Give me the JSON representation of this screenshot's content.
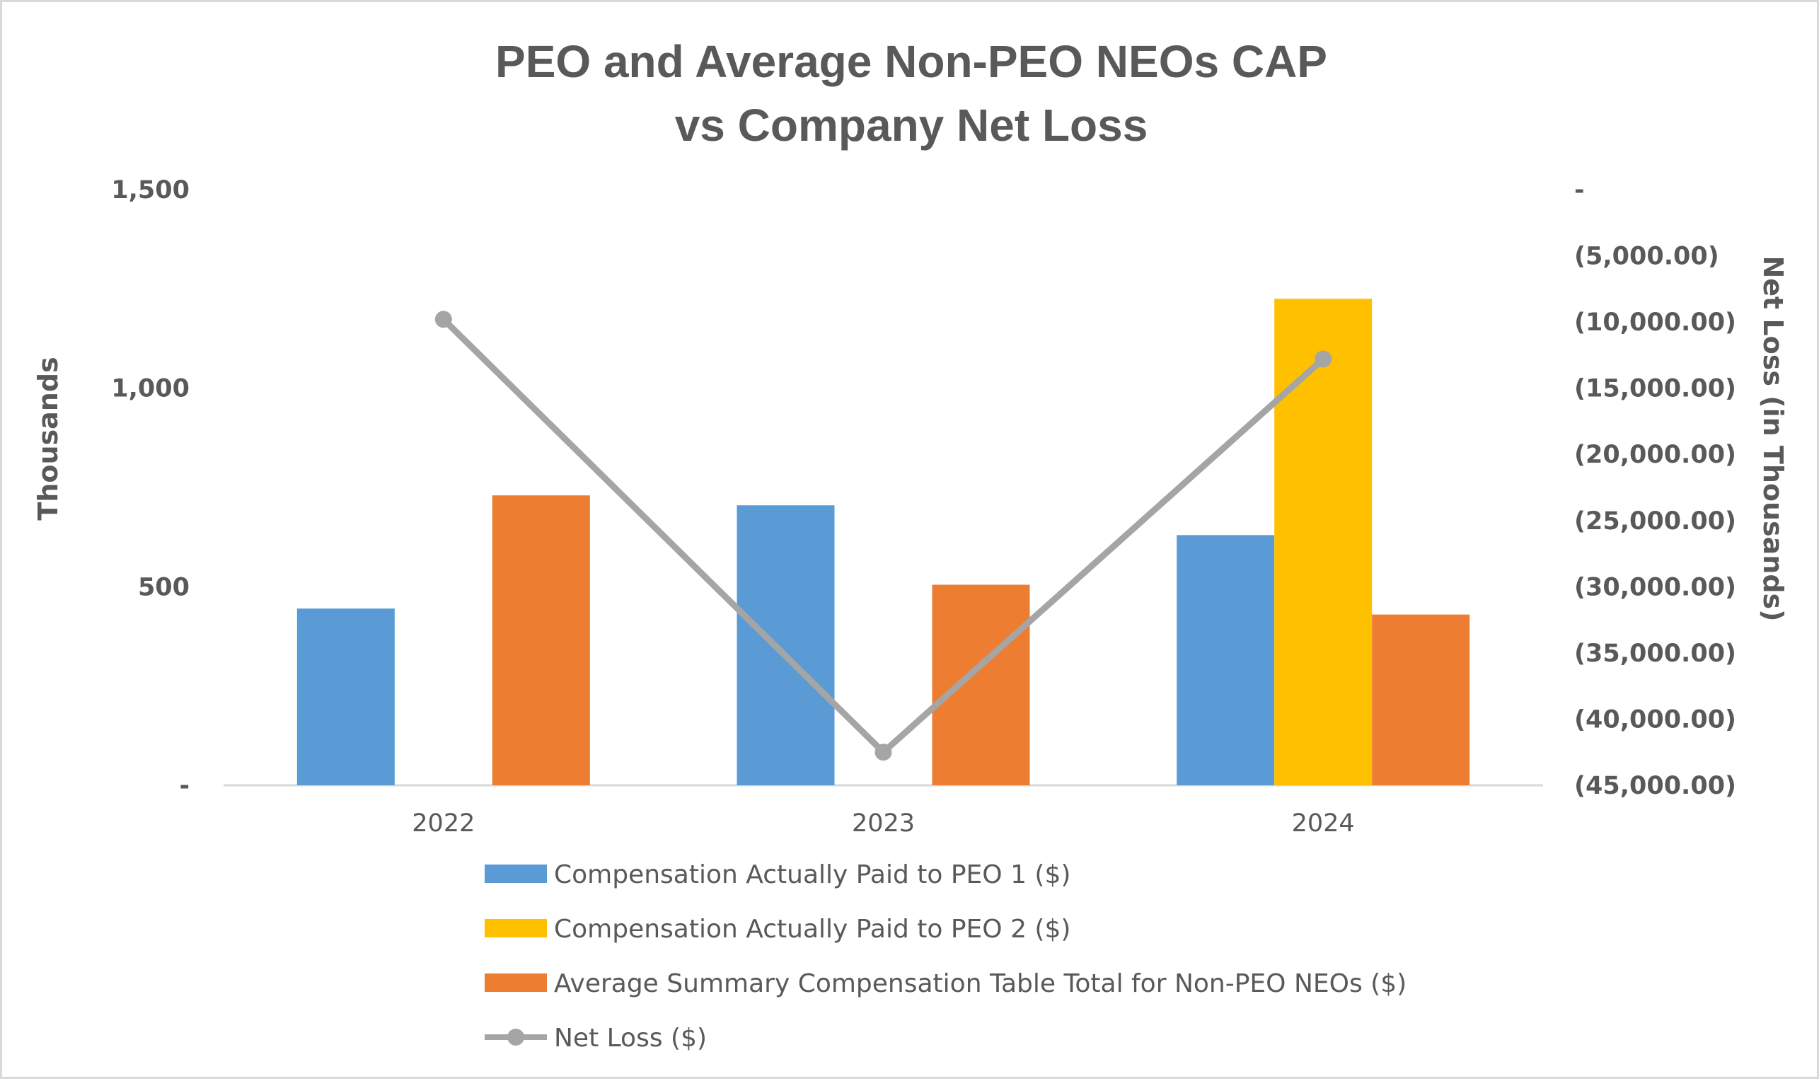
{
  "chart_data": {
    "type": "bar",
    "title": "PEO and Average Non-PEO NEOs CAP",
    "title_line2": "vs Company Net Loss",
    "categories": [
      "2022",
      "2023",
      "2024"
    ],
    "ylabel": "Thousands",
    "y2label": "Net Loss (in Thousands)",
    "ylim": [
      0,
      1500
    ],
    "y2lim": [
      -45000,
      0
    ],
    "yticks": [
      0,
      500,
      1000,
      1500
    ],
    "ytick_labels": [
      "-",
      "500",
      "1,000",
      "1,500"
    ],
    "y2ticks": [
      0,
      -5000,
      -10000,
      -15000,
      -20000,
      -25000,
      -30000,
      -35000,
      -40000,
      -45000
    ],
    "y2tick_labels": [
      "-",
      "(5,000.00)",
      "(10,000.00)",
      "(15,000.00)",
      "(20,000.00)",
      "(25,000.00)",
      "(30,000.00)",
      "(35,000.00)",
      "(40,000.00)",
      "(45,000.00)"
    ],
    "grid": false,
    "legend_position": "bottom",
    "series": [
      {
        "name": "Compensation Actually Paid to PEO 1 ($)",
        "type": "bar",
        "color": "#5b9bd5",
        "values": [
          445,
          705,
          630
        ]
      },
      {
        "name": "Compensation Actually Paid to PEO 2 ($)",
        "type": "bar",
        "color": "#ffc000",
        "values": [
          null,
          null,
          1225
        ]
      },
      {
        "name": "Average Summary Compensation Table Total for Non-PEO NEOs ($)",
        "type": "bar",
        "color": "#ed7d31",
        "values": [
          730,
          505,
          430
        ]
      },
      {
        "name": "Net Loss ($)",
        "type": "line",
        "axis": "right",
        "color": "#a5a5a5",
        "values": [
          -9800,
          -42500,
          -12800
        ]
      }
    ]
  }
}
